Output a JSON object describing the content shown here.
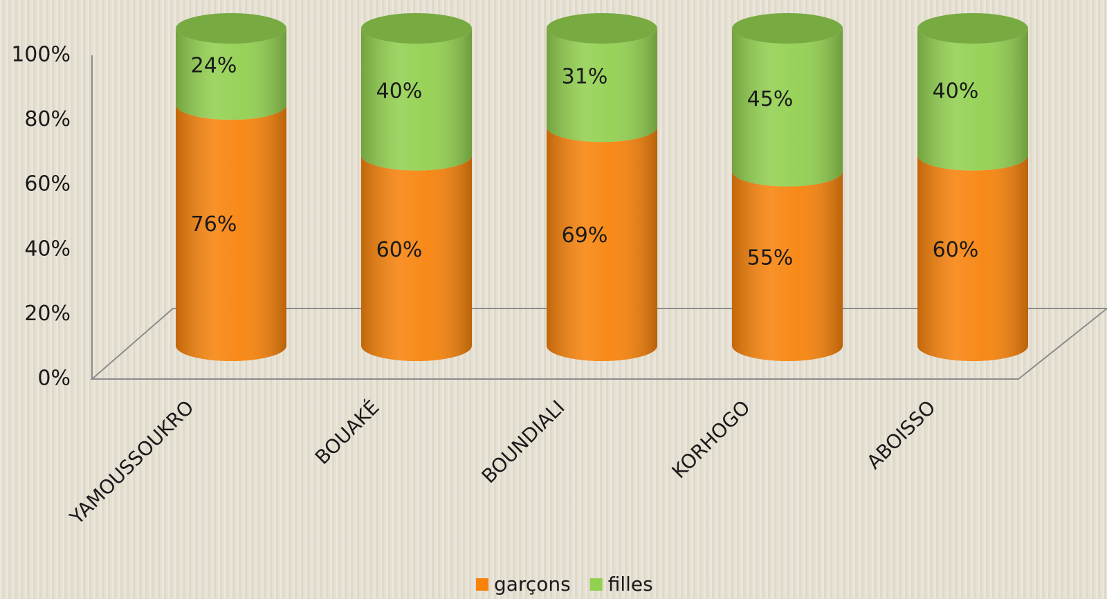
{
  "chart_data": {
    "type": "bar",
    "stacked": true,
    "categories": [
      "YAMOUSSOUKRO",
      "BOUAKÉ",
      "BOUNDIALI",
      "KORHOGO",
      "ABOISSO"
    ],
    "series": [
      {
        "name": "garçons",
        "color": "#f7830c",
        "values": [
          76,
          60,
          69,
          55,
          60
        ],
        "value_labels": [
          "76%",
          "60%",
          "69%",
          "55%",
          "60%"
        ]
      },
      {
        "name": "filles",
        "color": "#92d050",
        "values": [
          24,
          40,
          31,
          45,
          40
        ],
        "value_labels": [
          "24%",
          "40%",
          "31%",
          "45%",
          "40%"
        ]
      }
    ],
    "ylim": [
      0,
      100
    ],
    "yticks": [
      {
        "value": 0,
        "label": "0%"
      },
      {
        "value": 20,
        "label": "20%"
      },
      {
        "value": 40,
        "label": "40%"
      },
      {
        "value": 60,
        "label": "60%"
      },
      {
        "value": 80,
        "label": "80%"
      },
      {
        "value": 100,
        "label": "100%"
      }
    ],
    "legend": "bottom"
  }
}
